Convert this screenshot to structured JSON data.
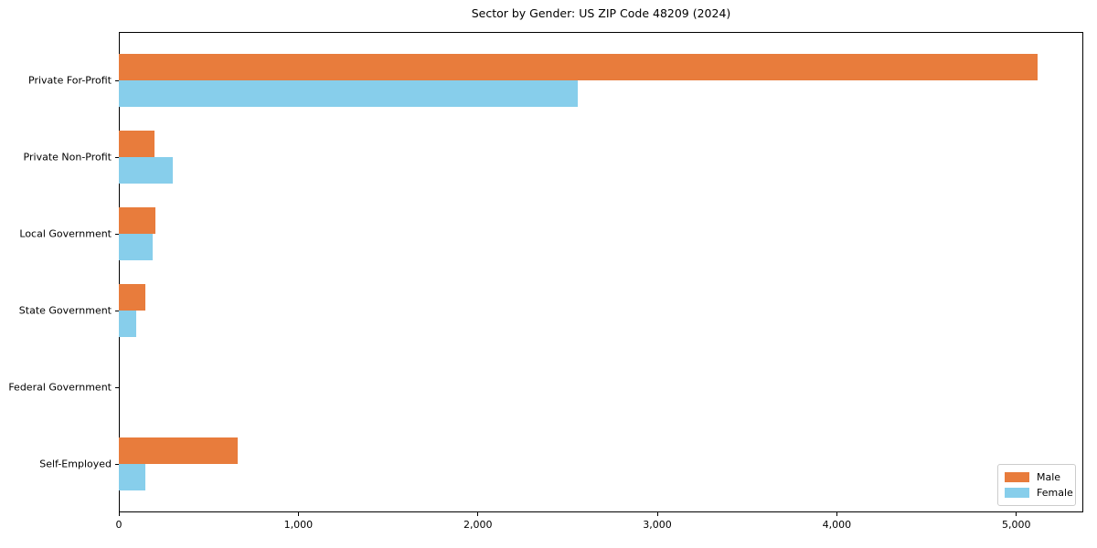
{
  "chart_data": {
    "type": "bar",
    "orientation": "horizontal",
    "title": "Sector by Gender: US ZIP Code 48209 (2024)",
    "categories": [
      "Private For-Profit",
      "Private Non-Profit",
      "Local Government",
      "State Government",
      "Federal Government",
      "Self-Employed"
    ],
    "series": [
      {
        "name": "Male",
        "color": "#e87c3c",
        "values": [
          5117,
          200,
          204,
          148,
          0,
          662
        ]
      },
      {
        "name": "Female",
        "color": "#87ceeb",
        "values": [
          2556,
          300,
          188,
          97,
          0,
          148
        ]
      }
    ],
    "xlabel": "",
    "ylabel": "",
    "xlim": [
      0,
      5373
    ],
    "xticks": [
      0,
      1000,
      2000,
      3000,
      4000,
      5000
    ],
    "xtick_labels": [
      "0",
      "1,000",
      "2,000",
      "3,000",
      "4,000",
      "5,000"
    ],
    "grid": false,
    "legend_position": "lower right",
    "background_color": "#ffffff",
    "spine_color": "#000000"
  }
}
